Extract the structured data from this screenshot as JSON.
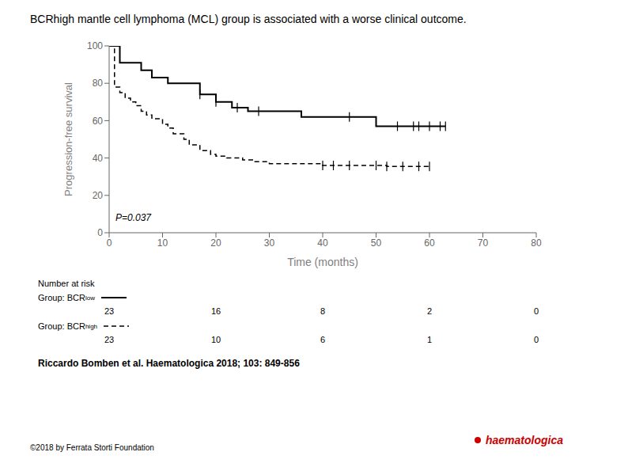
{
  "chart_data": {
    "type": "step",
    "title": "BCRhigh mantle cell lymphoma (MCL) group is associated with a worse clinical outcome.",
    "x_label": "Time (months)",
    "y_label": "Progression-free survival",
    "xlim": [
      0,
      80
    ],
    "ylim": [
      0,
      100
    ],
    "xticks": [
      0,
      10,
      20,
      30,
      40,
      50,
      60,
      70,
      80
    ],
    "yticks": [
      0,
      20,
      40,
      60,
      80,
      100
    ],
    "grid": false,
    "p_value_text": "P=0.037",
    "series": [
      {
        "label": "Group: BCR",
        "label_super": "low",
        "color": "black",
        "line_style": "solid",
        "x": [
          0,
          2,
          4,
          6,
          7,
          8,
          10,
          11,
          13,
          15,
          17,
          18,
          20,
          21,
          23,
          24,
          26,
          28,
          30,
          33,
          36,
          45,
          50,
          52,
          54,
          58,
          60,
          62,
          63
        ],
        "values": [
          100,
          91,
          91,
          87,
          87,
          83,
          83,
          80,
          80,
          80,
          74,
          74,
          70,
          70,
          67,
          67,
          65,
          65,
          65,
          65,
          62,
          62,
          57,
          57,
          57,
          57,
          57,
          57,
          57
        ],
        "censors_x": [
          17,
          20,
          24,
          28,
          45,
          54,
          57,
          58,
          60,
          62,
          63
        ],
        "censors_y": [
          74,
          70,
          67,
          65,
          62,
          57,
          57,
          57,
          57,
          57,
          57
        ],
        "at_risk": [
          "23",
          "16",
          "8",
          "2",
          "0"
        ]
      },
      {
        "label": "Group: BCR",
        "label_super": "high",
        "color": "black",
        "line_style": "dashed",
        "x": [
          0,
          1,
          2,
          3,
          4,
          5,
          6,
          7,
          8,
          10,
          11,
          12,
          14,
          15,
          17,
          19,
          20,
          22,
          25,
          27,
          30,
          32,
          38,
          40,
          42,
          45,
          50,
          52,
          55,
          58,
          60
        ],
        "values": [
          100,
          78,
          75,
          72,
          70,
          68,
          65,
          63,
          61,
          58,
          56,
          53,
          50,
          47,
          44,
          42,
          41,
          40,
          39,
          38,
          37,
          37,
          37,
          36,
          36,
          36,
          36,
          35.5,
          35.5,
          35.5,
          35.5
        ],
        "censors_x": [
          40,
          42,
          45,
          50,
          52,
          55,
          58,
          60
        ],
        "censors_y": [
          36,
          36,
          36,
          36,
          35.5,
          35.5,
          35.5,
          35.5
        ],
        "at_risk": [
          "23",
          "10",
          "6",
          "1",
          "0"
        ]
      }
    ],
    "at_risk_header": "Number at risk",
    "at_risk_times": [
      0,
      20,
      40,
      60,
      80
    ],
    "citation": "Riccardo Bomben et al. Haematologica 2018; 103: 849-856",
    "copyright": "©2018 by Ferrata Storti Foundation",
    "logo": {
      "text": "haematologica",
      "color": "#cc0000"
    }
  }
}
